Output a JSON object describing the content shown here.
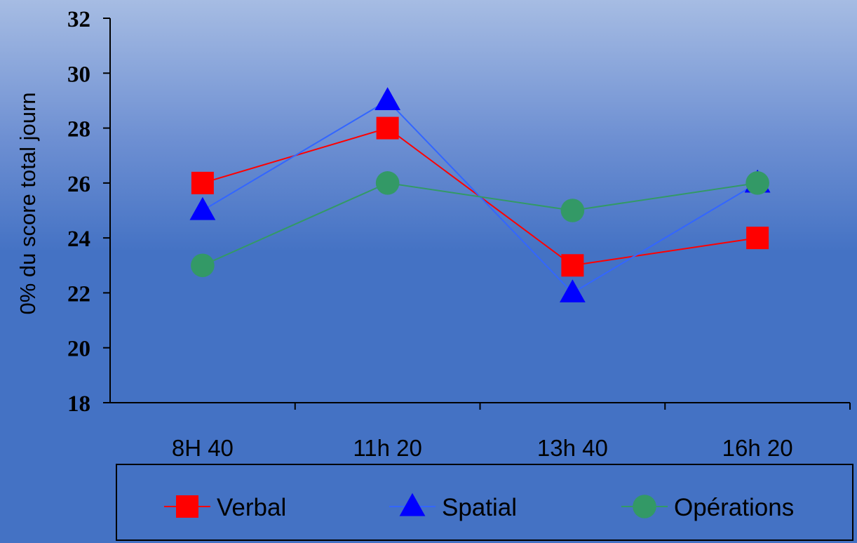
{
  "chart_data": {
    "type": "line",
    "categories": [
      "8H 40",
      "11h 20",
      "13h 40",
      "16h 20"
    ],
    "series": [
      {
        "name": "Verbal",
        "values": [
          26,
          28,
          23,
          24
        ],
        "color": "#ff0000",
        "line_color": "#ff0000",
        "marker": "square"
      },
      {
        "name": "Spatial",
        "values": [
          25,
          29,
          22,
          26
        ],
        "color": "#0000ff",
        "line_color": "#3366ff",
        "marker": "triangle"
      },
      {
        "name": "Opérations",
        "values": [
          23,
          26,
          25,
          26
        ],
        "color": "#339966",
        "line_color": "#339966",
        "marker": "circle"
      }
    ],
    "title": "",
    "xlabel": "",
    "ylabel": "0% du score total journ",
    "ylim": [
      18,
      32
    ],
    "yticks": [
      "18",
      "20",
      "22",
      "24",
      "26",
      "28",
      "30",
      "32"
    ],
    "grid": false,
    "legend_position": "bottom"
  }
}
